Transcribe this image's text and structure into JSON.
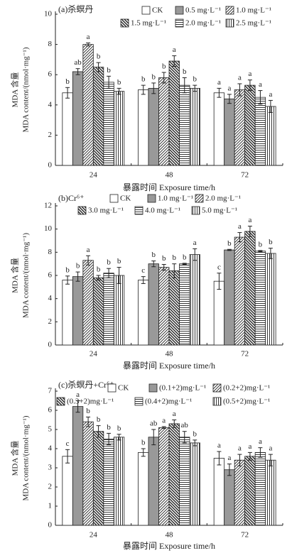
{
  "chart_data": [
    {
      "type": "bar",
      "title": "(a)杀螟丹",
      "ylabel": [
        "MDA 含量",
        "MDA content/(nmol·mg⁻¹)"
      ],
      "xlabel": "暴露时间 Exposure time/h",
      "categories": [
        "24",
        "48",
        "72"
      ],
      "ylim": [
        0,
        10
      ],
      "yticks": [
        0,
        2,
        4,
        6,
        8,
        10
      ],
      "series": [
        {
          "name": "CK",
          "color": "#ffffff",
          "pattern": "none",
          "values": [
            4.8,
            5.0,
            4.8
          ],
          "errors": [
            0.35,
            0.3,
            0.3
          ],
          "labels": [
            "b",
            "b",
            "a"
          ]
        },
        {
          "name": "0.5 mg·L⁻¹",
          "color": "#999999",
          "pattern": "solid",
          "values": [
            6.2,
            5.1,
            4.4
          ],
          "errors": [
            0.2,
            0.35,
            0.3
          ],
          "labels": [
            "ab",
            "b",
            "a"
          ]
        },
        {
          "name": "1.0 mg·L⁻¹",
          "color": "#ffffff",
          "pattern": "diag",
          "values": [
            8.0,
            5.8,
            5.0
          ],
          "errors": [
            0.1,
            0.35,
            0.4
          ],
          "labels": [
            "a",
            "b",
            "a"
          ]
        },
        {
          "name": "1.5 mg·L⁻¹",
          "color": "#ffffff",
          "pattern": "backdiag",
          "values": [
            6.5,
            6.9,
            5.3
          ],
          "errors": [
            0.3,
            0.35,
            0.35
          ],
          "labels": [
            "b",
            "a",
            "a"
          ]
        },
        {
          "name": "2.0 mg·L⁻¹",
          "color": "#ffffff",
          "pattern": "horizontal",
          "values": [
            5.5,
            5.3,
            4.5
          ],
          "errors": [
            0.4,
            0.5,
            0.45
          ],
          "labels": [
            "b",
            "b",
            "a"
          ]
        },
        {
          "name": "2.5 mg·L⁻¹",
          "color": "#ffffff",
          "pattern": "vertical",
          "values": [
            4.9,
            5.1,
            3.9
          ],
          "errors": [
            0.2,
            0.2,
            0.4
          ],
          "labels": [
            "b",
            "b",
            "a"
          ]
        }
      ]
    },
    {
      "type": "bar",
      "title": "(b)Cr⁶⁺",
      "ylabel": [
        "MDA 含量",
        "MDA content/(nmol·mg⁻¹)"
      ],
      "xlabel": "暴露时间 Exposure time/h",
      "categories": [
        "24",
        "48",
        "72"
      ],
      "ylim": [
        0,
        12
      ],
      "yticks": [
        0,
        2,
        4,
        6,
        8,
        10,
        12
      ],
      "series": [
        {
          "name": "CK",
          "color": "#ffffff",
          "pattern": "none",
          "values": [
            5.6,
            5.6,
            5.5
          ],
          "errors": [
            0.35,
            0.3,
            0.7
          ],
          "labels": [
            "b",
            "c",
            "c"
          ]
        },
        {
          "name": "1.0 mg·L⁻¹",
          "color": "#999999",
          "pattern": "solid",
          "values": [
            5.9,
            7.0,
            8.2
          ],
          "errors": [
            0.4,
            0.25,
            0.05
          ],
          "labels": [
            "b",
            "b",
            "b"
          ]
        },
        {
          "name": "2.0 mg·L⁻¹",
          "color": "#ffffff",
          "pattern": "diag",
          "values": [
            7.3,
            6.7,
            9.3
          ],
          "errors": [
            0.4,
            0.25,
            0.4
          ],
          "labels": [
            "a",
            "b",
            "a"
          ]
        },
        {
          "name": "3.0 mg·L⁻¹",
          "color": "#ffffff",
          "pattern": "backdiag",
          "values": [
            5.8,
            6.4,
            9.8
          ],
          "errors": [
            0.2,
            0.6,
            0.45
          ],
          "labels": [
            "b",
            "b",
            "a"
          ]
        },
        {
          "name": "4.0 mg·L⁻¹",
          "color": "#ffffff",
          "pattern": "horizontal",
          "values": [
            6.2,
            7.0,
            8.1
          ],
          "errors": [
            0.4,
            0.05,
            0.05
          ],
          "labels": [
            "b",
            "b",
            "b"
          ]
        },
        {
          "name": "5.0 mg·L⁻¹",
          "color": "#ffffff",
          "pattern": "vertical",
          "values": [
            6.0,
            7.8,
            7.9
          ],
          "errors": [
            0.7,
            0.5,
            0.45
          ],
          "labels": [
            "b",
            "a",
            "b"
          ]
        }
      ]
    },
    {
      "type": "bar",
      "title": "(c)杀螟丹+Cr⁶⁺",
      "ylabel": [
        "MDA 含量",
        "MDA content/(nmol·mg⁻¹)"
      ],
      "xlabel": "暴露时间 Exposure time/h",
      "categories": [
        "24",
        "48",
        "72"
      ],
      "ylim": [
        0,
        7
      ],
      "yticks": [
        0,
        1,
        2,
        3,
        4,
        5,
        6,
        7
      ],
      "series": [
        {
          "name": "CK",
          "color": "#ffffff",
          "pattern": "none",
          "values": [
            3.6,
            3.8,
            3.5
          ],
          "errors": [
            0.35,
            0.2,
            0.35
          ],
          "labels": [
            "c",
            "b",
            "a"
          ]
        },
        {
          "name": "(0.1+2)mg·L⁻¹",
          "color": "#999999",
          "pattern": "solid",
          "values": [
            6.2,
            4.6,
            2.9
          ],
          "errors": [
            0.3,
            0.4,
            0.3
          ],
          "labels": [
            "a",
            "ab",
            "a"
          ]
        },
        {
          "name": "(0.2+2)mg·L⁻¹",
          "color": "#ffffff",
          "pattern": "diag",
          "values": [
            5.4,
            5.1,
            3.4
          ],
          "errors": [
            0.25,
            0.05,
            0.3
          ],
          "labels": [
            "b",
            "a",
            "a"
          ]
        },
        {
          "name": "(0.3+2)mg·L⁻¹",
          "color": "#ffffff",
          "pattern": "backdiag",
          "values": [
            4.9,
            5.3,
            3.6
          ],
          "errors": [
            0.3,
            0.2,
            0.2
          ],
          "labels": [
            "b",
            "a",
            "a"
          ]
        },
        {
          "name": "(0.4+2)mg·L⁻¹",
          "color": "#ffffff",
          "pattern": "horizontal",
          "values": [
            4.5,
            4.6,
            3.8
          ],
          "errors": [
            0.3,
            0.3,
            0.25
          ],
          "labels": [
            "b",
            "ab",
            "a"
          ]
        },
        {
          "name": "(0.5+2)mg·L⁻¹",
          "color": "#ffffff",
          "pattern": "vertical",
          "values": [
            4.6,
            4.3,
            3.4
          ],
          "errors": [
            0.15,
            0.15,
            0.3
          ],
          "labels": [
            "b",
            "b",
            "a"
          ]
        }
      ]
    }
  ]
}
